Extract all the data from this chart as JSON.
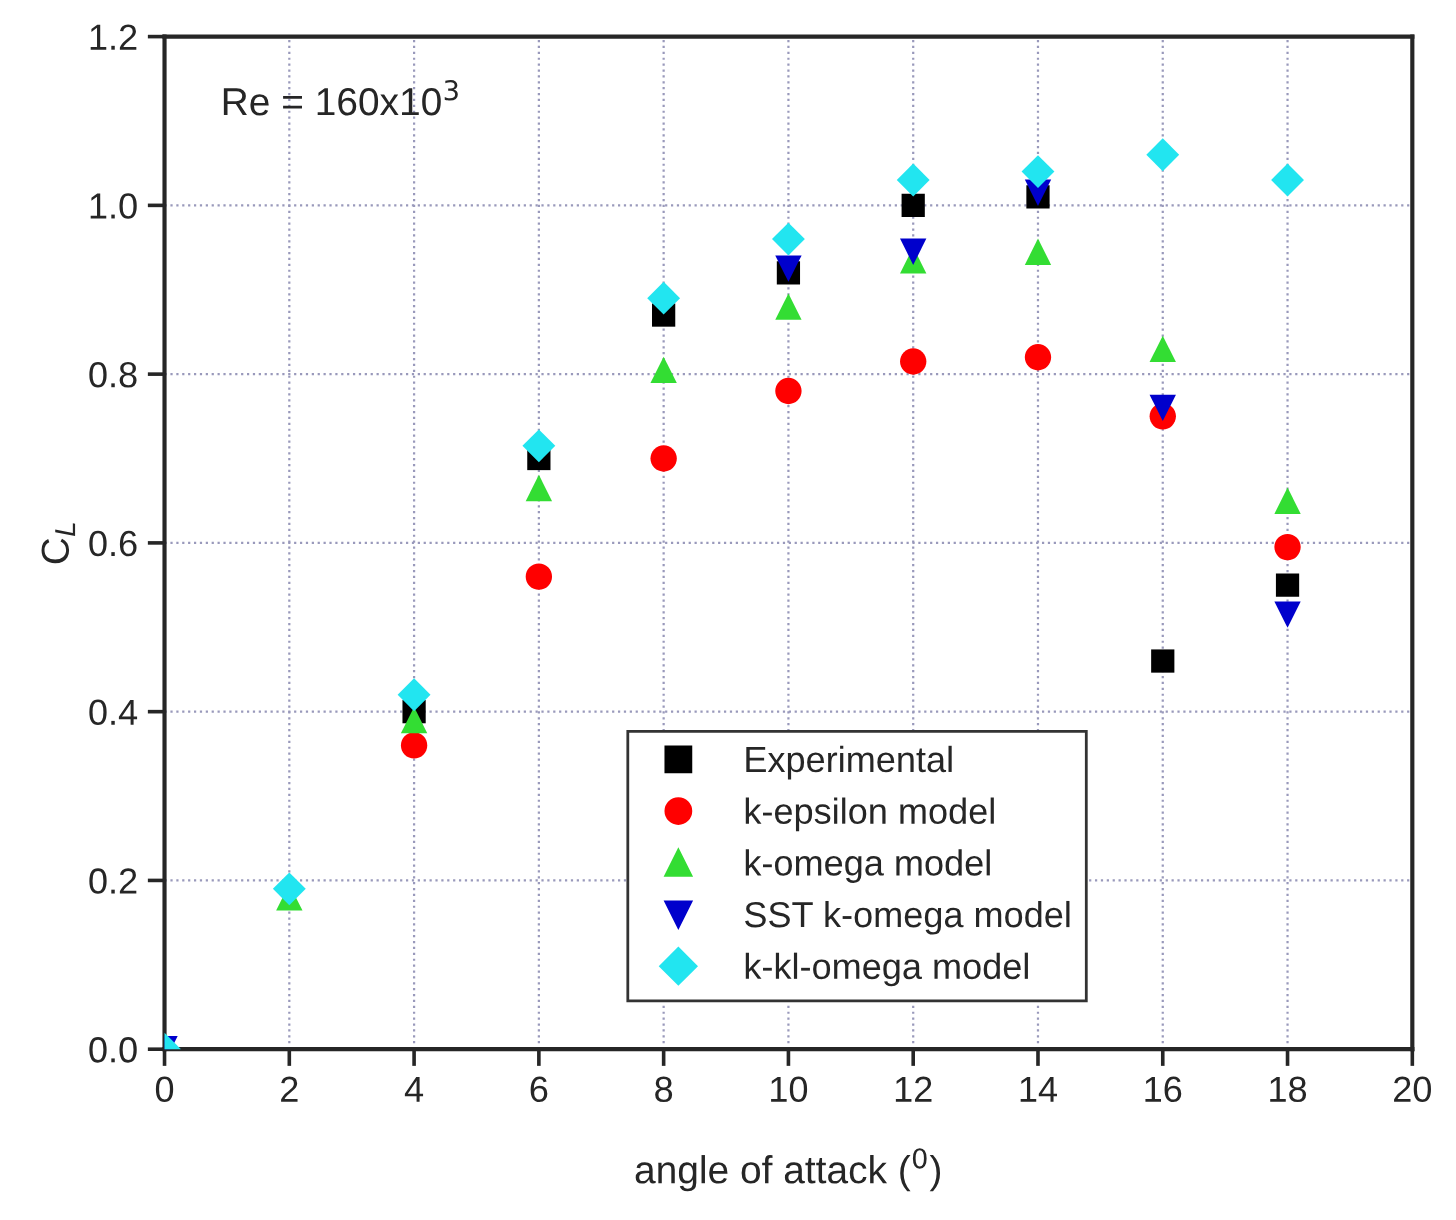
{
  "chart_data": {
    "type": "scatter",
    "xlabel": "angle of attack ($^{0}$)",
    "ylabel": "C$_{L}$",
    "annotations": [
      "Re = 160x10$^{3}$"
    ],
    "x": [
      0,
      2,
      4,
      6,
      8,
      10,
      12,
      14,
      16,
      18
    ],
    "series": [
      {
        "name": "Experimental",
        "color": "#000000",
        "marker": "square",
        "values": [
          null,
          null,
          0.4,
          0.7,
          0.87,
          0.92,
          1.0,
          1.01,
          0.46,
          0.55
        ]
      },
      {
        "name": "k-epsilon model",
        "color": "#ff0000",
        "marker": "circle",
        "values": [
          null,
          null,
          0.36,
          0.56,
          0.7,
          0.78,
          0.815,
          0.82,
          0.75,
          0.595
        ]
      },
      {
        "name": "k-omega model",
        "color": "#33dd33",
        "marker": "triangle",
        "values": [
          null,
          0.18,
          0.39,
          0.665,
          0.805,
          0.88,
          0.935,
          0.945,
          0.83,
          0.65
        ]
      },
      {
        "name": "SST k-omega model",
        "color": "#0000cc",
        "marker": "triangle_down",
        "values": [
          0.0,
          null,
          null,
          null,
          null,
          0.925,
          0.945,
          1.015,
          0.76,
          0.515
        ]
      },
      {
        "name": "k-kl-omega model",
        "color": "#22e5f0",
        "marker": "diamond",
        "values": [
          0.0,
          0.19,
          0.42,
          0.715,
          0.89,
          0.96,
          1.03,
          1.04,
          1.06,
          1.03
        ]
      }
    ],
    "xlim": [
      0,
      20
    ],
    "xticks": [
      0,
      2,
      4,
      6,
      8,
      10,
      12,
      14,
      16,
      18,
      20
    ],
    "ylim": [
      0.0,
      1.2
    ],
    "yticks": [
      {
        "value": 0.0,
        "label": "0.0"
      },
      0.2,
      0.4,
      0.6,
      0.8,
      {
        "value": 1.0,
        "label": "1.0"
      },
      1.2
    ],
    "grid": true,
    "legend": "bottom"
  }
}
